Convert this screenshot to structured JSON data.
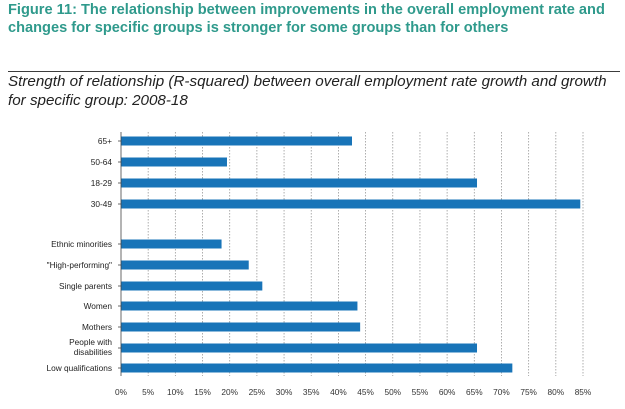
{
  "figure": {
    "title": "Figure 11: The relationship between improvements in the overall employment rate and changes for specific groups is stronger for some groups than for others",
    "subtitle": "Strength of relationship (R-squared) between overall employment rate growth and growth for specific group: 2008-18"
  },
  "colors": {
    "title": "#2f9a8c",
    "bar": "#1874b8",
    "grid": "#9a9a9a"
  },
  "chart_data": {
    "type": "bar",
    "orientation": "horizontal",
    "categories": [
      "65+",
      "50-64",
      "18-29",
      "30-49",
      "Ethnic minorities",
      "\"High-performing\"",
      "Single parents",
      "Women",
      "Mothers",
      "People with disabilities",
      "Low qualifications"
    ],
    "values": [
      42.5,
      19.5,
      65.5,
      84.5,
      18.5,
      23.5,
      26,
      43.5,
      44,
      65.5,
      72
    ],
    "x_ticks": [
      "0%",
      "5%",
      "10%",
      "15%",
      "20%",
      "25%",
      "30%",
      "35%",
      "40%",
      "45%",
      "50%",
      "55%",
      "60%",
      "65%",
      "70%",
      "75%",
      "80%",
      "85%"
    ],
    "xlim": [
      0,
      85
    ],
    "grid": "vertical dotted",
    "legend": "none"
  }
}
